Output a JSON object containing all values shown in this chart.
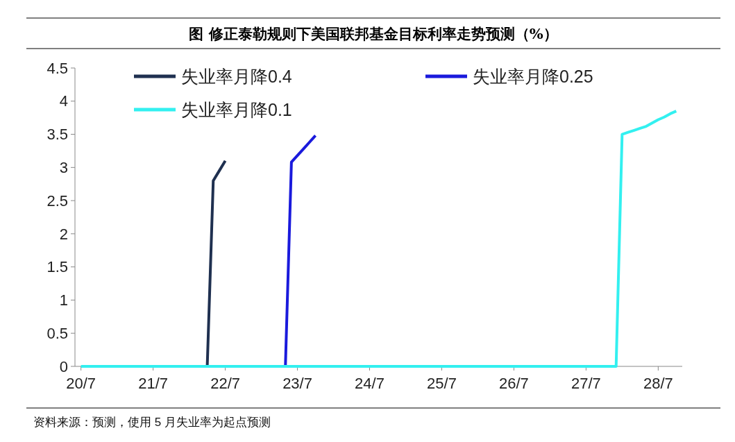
{
  "chart_data": {
    "type": "line",
    "title": "图  修正泰勒规则下美国联邦基金目标利率走势预测（%）",
    "categories": [
      null,
      "20/7",
      null,
      null,
      null,
      null,
      null,
      null,
      null,
      null,
      null,
      null,
      null,
      "21/7",
      null,
      null,
      null,
      null,
      null,
      null,
      null,
      null,
      null,
      null,
      null,
      "22/7",
      null,
      null,
      null,
      null,
      null,
      null,
      null,
      null,
      null,
      null,
      null,
      "23/7",
      null,
      null,
      null,
      null,
      null,
      null,
      null,
      null,
      null,
      null,
      null,
      "24/7",
      null,
      null,
      null,
      null,
      null,
      null,
      null,
      null,
      null,
      null,
      null,
      "25/7",
      null,
      null,
      null,
      null,
      null,
      null,
      null,
      null,
      null,
      null,
      null,
      "26/7",
      null,
      null,
      null,
      null,
      null,
      null,
      null,
      null,
      null,
      null,
      null,
      "27/7",
      null,
      null,
      null,
      null,
      null,
      null,
      null,
      null,
      null,
      null,
      null,
      "28/7",
      null,
      null,
      null,
      null
    ],
    "series": [
      {
        "name": "失业率月降0.4",
        "color": "#1f3050",
        "values": [
          null,
          null,
          null,
          null,
          null,
          null,
          null,
          null,
          null,
          null,
          null,
          null,
          null,
          null,
          null,
          null,
          null,
          null,
          null,
          null,
          null,
          null,
          0,
          2.8,
          2.95,
          3.1,
          null,
          null,
          null,
          null,
          null,
          null,
          null,
          null,
          null,
          null,
          null,
          null,
          null,
          null,
          null,
          null,
          null,
          null,
          null,
          null,
          null,
          null,
          null,
          null,
          null,
          null,
          null,
          null,
          null,
          null,
          null,
          null,
          null,
          null,
          null,
          null,
          null,
          null,
          null,
          null,
          null,
          null,
          null,
          null,
          null,
          null,
          null,
          null,
          null,
          null,
          null,
          null,
          null,
          null,
          null,
          null,
          null,
          null,
          null,
          null,
          null,
          null,
          null,
          null,
          null,
          null,
          null,
          null,
          null,
          null,
          null,
          null,
          null,
          null,
          null,
          null
        ]
      },
      {
        "name": "失业率月降0.25",
        "color": "#1a1adc",
        "values": [
          null,
          null,
          null,
          null,
          null,
          null,
          null,
          null,
          null,
          null,
          null,
          null,
          null,
          null,
          null,
          null,
          null,
          null,
          null,
          null,
          null,
          null,
          null,
          null,
          null,
          null,
          null,
          null,
          null,
          null,
          null,
          null,
          null,
          null,
          null,
          0,
          3.08,
          3.18,
          3.28,
          3.38,
          3.48,
          null,
          null,
          null,
          null,
          null,
          null,
          null,
          null,
          null,
          null,
          null,
          null,
          null,
          null,
          null,
          null,
          null,
          null,
          null,
          null,
          null,
          null,
          null,
          null,
          null,
          null,
          null,
          null,
          null,
          null,
          null,
          null,
          null,
          null,
          null,
          null,
          null,
          null,
          null,
          null,
          null,
          null,
          null,
          null,
          null,
          null,
          null,
          null,
          null,
          null,
          null,
          null,
          null,
          null,
          null,
          null,
          null,
          null,
          null,
          null,
          null
        ]
      },
      {
        "name": "失业率月降0.1",
        "color": "#33f0f0",
        "values": [
          null,
          0,
          0,
          0,
          0,
          0,
          0,
          0,
          0,
          0,
          0,
          0,
          0,
          0,
          0,
          0,
          0,
          0,
          0,
          0,
          0,
          0,
          0,
          0,
          0,
          0,
          0,
          0,
          0,
          0,
          0,
          0,
          0,
          0,
          0,
          0,
          0,
          0,
          0,
          0,
          0,
          0,
          0,
          0,
          0,
          0,
          0,
          0,
          0,
          0,
          0,
          0,
          0,
          0,
          0,
          0,
          0,
          0,
          0,
          0,
          0,
          0,
          0,
          0,
          0,
          0,
          0,
          0,
          0,
          0,
          0,
          0,
          0,
          0,
          0,
          0,
          0,
          0,
          0,
          0,
          0,
          0,
          0,
          0,
          0,
          0,
          0,
          0,
          0,
          0,
          0,
          3.5,
          3.53,
          3.56,
          3.59,
          3.62,
          3.67,
          3.72,
          3.76,
          3.81,
          3.85,
          null
        ]
      }
    ],
    "ylim": [
      0,
      4.5
    ],
    "yticks": [
      0,
      0.5,
      1,
      1.5,
      2,
      2.5,
      3,
      3.5,
      4,
      4.5
    ],
    "grid": false,
    "legend": "top left",
    "marker": "none",
    "line_style": "solid",
    "annotations": [
      "资料来源：预测，使用 5 月失业率为起点预测"
    ]
  }
}
